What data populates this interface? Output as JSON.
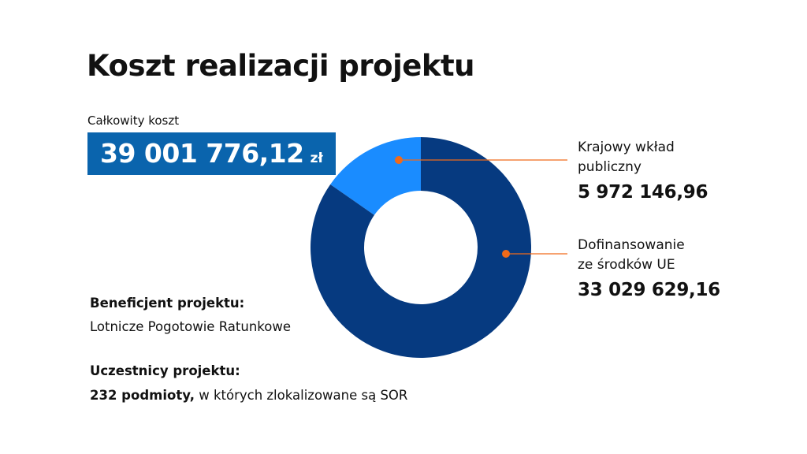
{
  "title": "Koszt realizacji projektu",
  "total": {
    "label": "Całkowity koszt",
    "value": "39 001 776,12",
    "unit": "zł"
  },
  "chart_data": {
    "type": "pie",
    "donut": true,
    "title": "",
    "slices": [
      {
        "label": "Krajowy wkład publiczny",
        "value": 5972146.96,
        "display": "5 972 146,96",
        "color": "#1a8cff"
      },
      {
        "label": "Dofinansowanie ze środków UE",
        "value": 33029629.16,
        "display": "33 029 629,16",
        "color": "#063a80"
      }
    ],
    "marker_color": "#f06a1a"
  },
  "callouts": [
    {
      "label_lines": [
        "Krajowy wkład",
        "publiczny"
      ],
      "value": "5 972 146,96"
    },
    {
      "label_lines": [
        "Dofinansowanie",
        "ze środków UE"
      ],
      "value": "33 029 629,16"
    }
  ],
  "beneficiary": {
    "heading": "Beneficjent projektu:",
    "value": "Lotnicze Pogotowie Ratunkowe"
  },
  "participants": {
    "heading": "Uczestnicy projektu:",
    "bold_part": "232 podmioty,",
    "rest": " w których zlokalizowane są SOR"
  }
}
